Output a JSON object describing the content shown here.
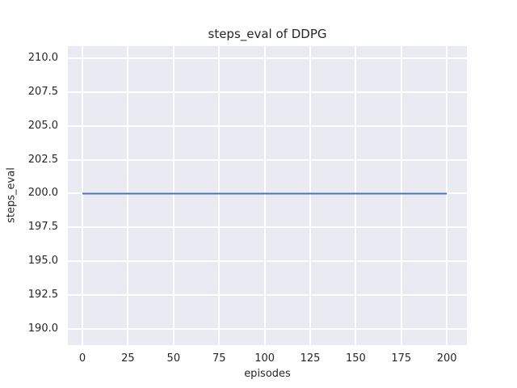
{
  "chart_data": {
    "type": "line",
    "title": "steps_eval of DDPG",
    "xlabel": "episodes",
    "ylabel": "steps_eval",
    "x_ticks": [
      {
        "value": 0,
        "label": "0"
      },
      {
        "value": 25,
        "label": "25"
      },
      {
        "value": 50,
        "label": "50"
      },
      {
        "value": 75,
        "label": "75"
      },
      {
        "value": 100,
        "label": "100"
      },
      {
        "value": 125,
        "label": "125"
      },
      {
        "value": 150,
        "label": "150"
      },
      {
        "value": 175,
        "label": "175"
      },
      {
        "value": 200,
        "label": "200"
      }
    ],
    "y_ticks": [
      {
        "value": 190.0,
        "label": "190.0"
      },
      {
        "value": 192.5,
        "label": "192.5"
      },
      {
        "value": 195.0,
        "label": "195.0"
      },
      {
        "value": 197.5,
        "label": "197.5"
      },
      {
        "value": 200.0,
        "label": "200.0"
      },
      {
        "value": 202.5,
        "label": "202.5"
      },
      {
        "value": 205.0,
        "label": "205.0"
      },
      {
        "value": 207.5,
        "label": "207.5"
      },
      {
        "value": 210.0,
        "label": "210.0"
      }
    ],
    "xlim": [
      -8,
      211
    ],
    "ylim": [
      188.8,
      210.9
    ],
    "grid": true,
    "legend_position": "none",
    "style": {
      "plot_background": "#eaeaf2",
      "grid_color": "#ffffff",
      "text_color": "#262626",
      "line_color": "#4c72b0",
      "line_width": 2
    },
    "series": [
      {
        "name": "steps_eval of DDPG",
        "x": [
          0,
          200
        ],
        "y": [
          200,
          200
        ]
      }
    ]
  }
}
